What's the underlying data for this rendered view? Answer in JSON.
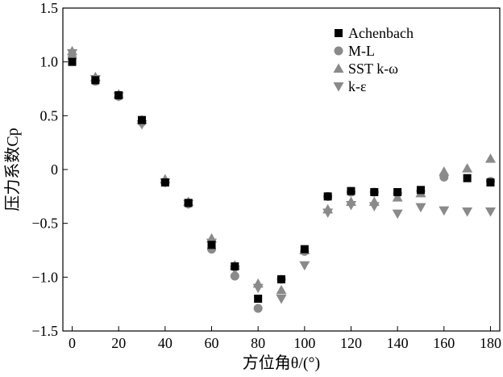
{
  "chart_data": {
    "type": "scatter",
    "xlabel": "方位角θ/(°)",
    "ylabel": "压力系数Cp",
    "xlim": [
      -4,
      184
    ],
    "ylim": [
      -1.5,
      1.5
    ],
    "x_ticks": [
      0,
      20,
      40,
      60,
      80,
      100,
      120,
      140,
      160,
      180
    ],
    "y_ticks": [
      1.5,
      1.0,
      0.5,
      0,
      -0.5,
      -1.0,
      -1.5
    ],
    "y_tick_labels": [
      "1.5",
      "1.0",
      "0.5",
      "0",
      "−0.5",
      "−1.0",
      "−1.5"
    ],
    "grid": false,
    "legend_position": "top-right",
    "series": [
      {
        "name": "Achenbach",
        "marker": "square",
        "color": "#000000",
        "x": [
          0,
          10,
          20,
          30,
          40,
          50,
          60,
          70,
          80,
          90,
          100,
          110,
          120,
          130,
          140,
          150,
          170,
          180
        ],
        "y": [
          1.0,
          0.83,
          0.69,
          0.46,
          -0.12,
          -0.31,
          -0.7,
          -0.9,
          -1.2,
          -1.02,
          -0.74,
          -0.25,
          -0.2,
          -0.21,
          -0.21,
          -0.19,
          -0.08,
          -0.12
        ]
      },
      {
        "name": "M-L",
        "marker": "circle",
        "color": "#8a8a8a",
        "x": [
          0,
          10,
          20,
          30,
          40,
          50,
          60,
          70,
          80,
          90,
          100,
          110,
          120,
          130,
          140,
          150,
          160,
          180
        ],
        "y": [
          1.04,
          0.82,
          0.68,
          0.44,
          -0.12,
          -0.32,
          -0.74,
          -0.99,
          -1.29,
          -1.02,
          -0.76,
          -0.25,
          -0.21,
          -0.21,
          -0.22,
          -0.2,
          -0.07,
          -0.11
        ]
      },
      {
        "name": "SST k-ω",
        "marker": "triangle-up",
        "color": "#8a8a8a",
        "x": [
          0,
          10,
          20,
          30,
          40,
          50,
          60,
          70,
          80,
          90,
          100,
          110,
          120,
          130,
          140,
          150,
          160,
          170,
          180
        ],
        "y": [
          1.1,
          0.86,
          0.7,
          0.46,
          -0.09,
          -0.3,
          -0.64,
          -0.89,
          -1.06,
          -1.12,
          -0.75,
          -0.37,
          -0.3,
          -0.3,
          -0.26,
          -0.22,
          -0.02,
          0.01,
          0.1
        ]
      },
      {
        "name": "k-ε",
        "marker": "triangle-down",
        "color": "#8a8a8a",
        "x": [
          0,
          10,
          20,
          30,
          40,
          50,
          60,
          70,
          80,
          90,
          100,
          110,
          120,
          130,
          140,
          150,
          160,
          170,
          180
        ],
        "y": [
          1.08,
          0.84,
          0.68,
          0.42,
          -0.12,
          -0.32,
          -0.68,
          -0.93,
          -1.1,
          -1.2,
          -0.89,
          -0.4,
          -0.33,
          -0.34,
          -0.41,
          -0.35,
          -0.38,
          -0.39,
          -0.39
        ]
      }
    ]
  }
}
